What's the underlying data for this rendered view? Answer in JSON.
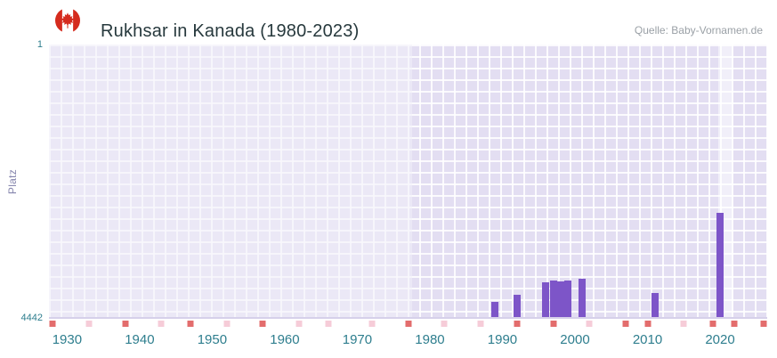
{
  "header": {
    "title": "Rukhsar in Kanada (1980-2023)",
    "source": "Quelle: Baby-Vornamen.de"
  },
  "chart_data": {
    "type": "bar",
    "title": "Rukhsar in Kanada (1980-2023)",
    "ylabel": "Platz",
    "y_axis": {
      "top_label": "1",
      "bottom_label": "4442",
      "min": 1,
      "max": 4442,
      "inverted": true
    },
    "x_axis": {
      "tick_labels": [
        "1930",
        "1940",
        "1950",
        "1960",
        "1970",
        "1980",
        "1990",
        "2000",
        "2010",
        "2020"
      ],
      "range": [
        1927.5,
        2026.5
      ]
    },
    "grid": true,
    "legend": false,
    "no_data_region": {
      "from": 1927.5,
      "to": 1977.5
    },
    "highlight_band": {
      "from": 2019.8,
      "to": 2021.8
    },
    "series": [
      {
        "name": "Platz",
        "points": [
          {
            "year": 1989,
            "rank": 4200
          },
          {
            "year": 1992,
            "rank": 4080
          },
          {
            "year": 1996,
            "rank": 3870
          },
          {
            "year": 1997,
            "rank": 3850
          },
          {
            "year": 1998,
            "rank": 3860
          },
          {
            "year": 1999,
            "rank": 3850
          },
          {
            "year": 2001,
            "rank": 3820
          },
          {
            "year": 2011,
            "rank": 4050
          },
          {
            "year": 2020,
            "rank": 2740
          }
        ]
      }
    ],
    "bottom_markers": [
      {
        "year": 1928,
        "shade": "dark"
      },
      {
        "year": 1933,
        "shade": "light"
      },
      {
        "year": 1938,
        "shade": "dark"
      },
      {
        "year": 1943,
        "shade": "light"
      },
      {
        "year": 1947,
        "shade": "dark"
      },
      {
        "year": 1952,
        "shade": "light"
      },
      {
        "year": 1957,
        "shade": "dark"
      },
      {
        "year": 1962,
        "shade": "light"
      },
      {
        "year": 1966,
        "shade": "light"
      },
      {
        "year": 1972,
        "shade": "light"
      },
      {
        "year": 1977,
        "shade": "dark"
      },
      {
        "year": 1982,
        "shade": "light"
      },
      {
        "year": 1987,
        "shade": "light"
      },
      {
        "year": 1992,
        "shade": "dark"
      },
      {
        "year": 1997,
        "shade": "dark"
      },
      {
        "year": 2002,
        "shade": "light"
      },
      {
        "year": 2007,
        "shade": "dark"
      },
      {
        "year": 2010,
        "shade": "dark"
      },
      {
        "year": 2015,
        "shade": "light"
      },
      {
        "year": 2019,
        "shade": "dark"
      },
      {
        "year": 2022,
        "shade": "dark"
      },
      {
        "year": 2026,
        "shade": "dark"
      }
    ],
    "colors": {
      "bar": "#7d55c8",
      "plot_bg": "#e3def2",
      "grid": "rgba(255,255,255,0.85)",
      "marker_dark": "#e36d6d",
      "marker_light": "#f6ccd8",
      "axis_label": "#2e7e8e",
      "ylabel": "#8585ad",
      "flag_red": "#d52b1e"
    }
  }
}
